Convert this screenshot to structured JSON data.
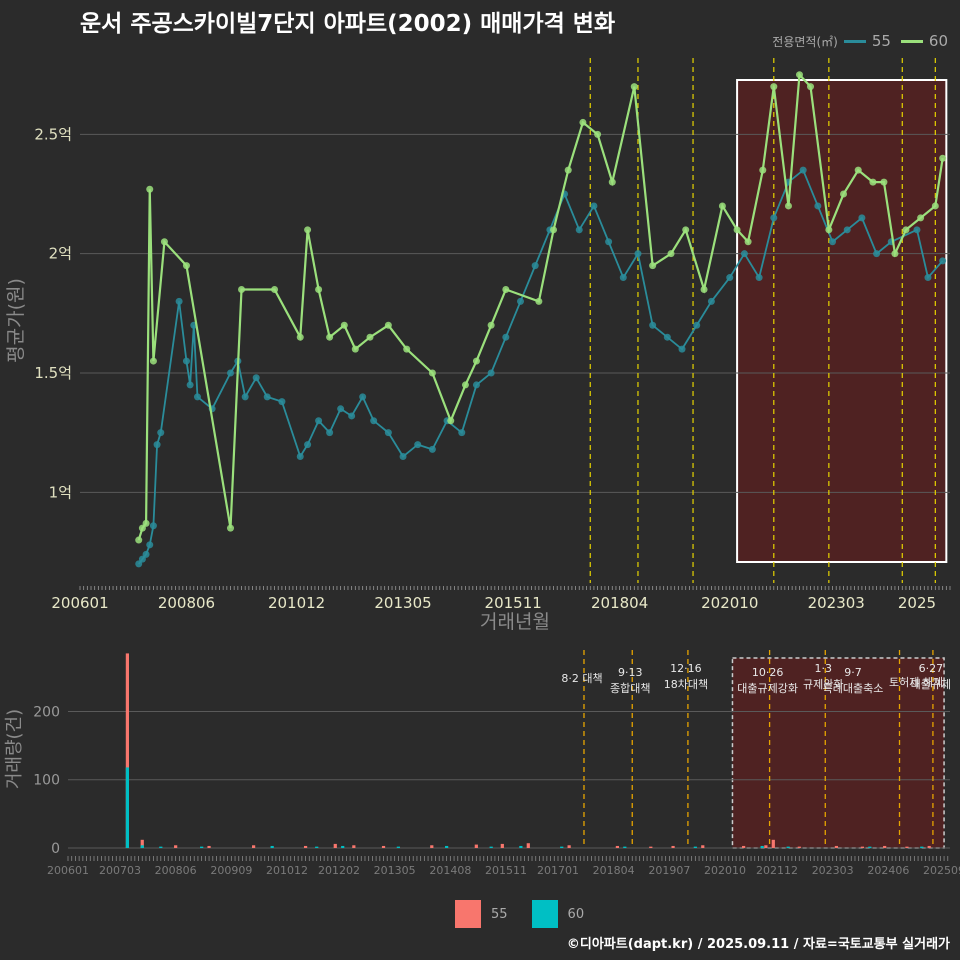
{
  "title": "운서 주공스카이빌7단지 아파트(2002) 매매가격 변화",
  "legend": {
    "title": "전용면적(㎡)",
    "items": [
      "55",
      "60"
    ]
  },
  "footer": "©디아파트(dapt.kr) / 2025.09.11 / 자료=국토교통부 실거래가",
  "colors": {
    "s55_line": "#2a8c9a",
    "s60_line": "#9be07c",
    "bar55": "#f8766d",
    "bar60": "#00bfc4",
    "policy": "#e6d400",
    "highlight": "#5c2020"
  },
  "chart_data": [
    {
      "type": "line",
      "xlabel": "거래년월",
      "ylabel": "평균가(원)",
      "x_ticks": [
        "200601",
        "200806",
        "201012",
        "201305",
        "201511",
        "201804",
        "202010",
        "202303",
        "2025"
      ],
      "y_ticks": [
        "1억",
        "1.5억",
        "2억",
        "2.5억"
      ],
      "ylim": [
        0.62,
        2.82
      ],
      "y_unit": "억",
      "highlight_range": [
        "2020-12",
        "2025-09"
      ],
      "policy_dates": [
        "2017-08",
        "2018-09",
        "2019-12",
        "2021-10",
        "2023-01",
        "2024-09",
        "2025-06"
      ],
      "series": [
        {
          "name": "55",
          "points": [
            [
              "2007-05",
              0.7
            ],
            [
              "2007-06",
              0.72
            ],
            [
              "2007-07",
              0.74
            ],
            [
              "2007-08",
              0.78
            ],
            [
              "2007-09",
              0.86
            ],
            [
              "2007-10",
              1.2
            ],
            [
              "2007-11",
              1.25
            ],
            [
              "2008-04",
              1.8
            ],
            [
              "2008-06",
              1.55
            ],
            [
              "2008-07",
              1.45
            ],
            [
              "2008-08",
              1.7
            ],
            [
              "2008-09",
              1.4
            ],
            [
              "2009-01",
              1.35
            ],
            [
              "2009-06",
              1.5
            ],
            [
              "2009-08",
              1.55
            ],
            [
              "2009-10",
              1.4
            ],
            [
              "2010-01",
              1.48
            ],
            [
              "2010-04",
              1.4
            ],
            [
              "2010-08",
              1.38
            ],
            [
              "2011-01",
              1.15
            ],
            [
              "2011-03",
              1.2
            ],
            [
              "2011-06",
              1.3
            ],
            [
              "2011-09",
              1.25
            ],
            [
              "2011-12",
              1.35
            ],
            [
              "2012-03",
              1.32
            ],
            [
              "2012-06",
              1.4
            ],
            [
              "2012-09",
              1.3
            ],
            [
              "2013-01",
              1.25
            ],
            [
              "2013-05",
              1.15
            ],
            [
              "2013-09",
              1.2
            ],
            [
              "2014-01",
              1.18
            ],
            [
              "2014-05",
              1.3
            ],
            [
              "2014-09",
              1.25
            ],
            [
              "2015-01",
              1.45
            ],
            [
              "2015-05",
              1.5
            ],
            [
              "2015-09",
              1.65
            ],
            [
              "2016-01",
              1.8
            ],
            [
              "2016-05",
              1.95
            ],
            [
              "2016-09",
              2.1
            ],
            [
              "2017-01",
              2.25
            ],
            [
              "2017-05",
              2.1
            ],
            [
              "2017-09",
              2.2
            ],
            [
              "2018-01",
              2.05
            ],
            [
              "2018-05",
              1.9
            ],
            [
              "2018-09",
              2.0
            ],
            [
              "2019-01",
              1.7
            ],
            [
              "2019-05",
              1.65
            ],
            [
              "2019-09",
              1.6
            ],
            [
              "2020-01",
              1.7
            ],
            [
              "2020-05",
              1.8
            ],
            [
              "2020-10",
              1.9
            ],
            [
              "2021-02",
              2.0
            ],
            [
              "2021-06",
              1.9
            ],
            [
              "2021-10",
              2.15
            ],
            [
              "2022-02",
              2.3
            ],
            [
              "2022-06",
              2.35
            ],
            [
              "2022-10",
              2.2
            ],
            [
              "2023-02",
              2.05
            ],
            [
              "2023-06",
              2.1
            ],
            [
              "2023-10",
              2.15
            ],
            [
              "2024-02",
              2.0
            ],
            [
              "2024-06",
              2.05
            ],
            [
              "2025-01",
              2.1
            ],
            [
              "2025-04",
              1.9
            ],
            [
              "2025-08",
              1.97
            ]
          ]
        },
        {
          "name": "60",
          "points": [
            [
              "2007-05",
              0.8
            ],
            [
              "2007-06",
              0.85
            ],
            [
              "2007-07",
              0.87
            ],
            [
              "2007-08",
              2.27
            ],
            [
              "2007-09",
              1.55
            ],
            [
              "2007-12",
              2.05
            ],
            [
              "2008-06",
              1.95
            ],
            [
              "2009-06",
              0.85
            ],
            [
              "2009-09",
              1.85
            ],
            [
              "2010-06",
              1.85
            ],
            [
              "2011-01",
              1.65
            ],
            [
              "2011-03",
              2.1
            ],
            [
              "2011-06",
              1.85
            ],
            [
              "2011-09",
              1.65
            ],
            [
              "2012-01",
              1.7
            ],
            [
              "2012-04",
              1.6
            ],
            [
              "2012-08",
              1.65
            ],
            [
              "2013-01",
              1.7
            ],
            [
              "2013-06",
              1.6
            ],
            [
              "2014-01",
              1.5
            ],
            [
              "2014-06",
              1.3
            ],
            [
              "2014-10",
              1.45
            ],
            [
              "2015-01",
              1.55
            ],
            [
              "2015-05",
              1.7
            ],
            [
              "2015-09",
              1.85
            ],
            [
              "2016-06",
              1.8
            ],
            [
              "2016-10",
              2.1
            ],
            [
              "2017-02",
              2.35
            ],
            [
              "2017-06",
              2.55
            ],
            [
              "2017-10",
              2.5
            ],
            [
              "2018-02",
              2.3
            ],
            [
              "2018-08",
              2.7
            ],
            [
              "2019-01",
              1.95
            ],
            [
              "2019-06",
              2.0
            ],
            [
              "2019-10",
              2.1
            ],
            [
              "2020-03",
              1.85
            ],
            [
              "2020-08",
              2.2
            ],
            [
              "2020-12",
              2.1
            ],
            [
              "2021-03",
              2.05
            ],
            [
              "2021-07",
              2.35
            ],
            [
              "2021-10",
              2.7
            ],
            [
              "2022-02",
              2.2
            ],
            [
              "2022-05",
              2.75
            ],
            [
              "2022-08",
              2.7
            ],
            [
              "2023-01",
              2.1
            ],
            [
              "2023-05",
              2.25
            ],
            [
              "2023-09",
              2.35
            ],
            [
              "2024-01",
              2.3
            ],
            [
              "2024-04",
              2.3
            ],
            [
              "2024-07",
              2.0
            ],
            [
              "2024-10",
              2.1
            ],
            [
              "2025-02",
              2.15
            ],
            [
              "2025-06",
              2.2
            ],
            [
              "2025-08",
              2.4
            ]
          ]
        }
      ]
    },
    {
      "type": "bar",
      "xlabel": "",
      "ylabel": "거래량(건)",
      "x_ticks": [
        "200601",
        "200703",
        "200806",
        "200909",
        "201012",
        "201202",
        "201305",
        "201408",
        "201511",
        "201701",
        "201804",
        "201907",
        "202010",
        "202112",
        "202303",
        "202406",
        "202509"
      ],
      "y_ticks": [
        "0",
        "100",
        "200"
      ],
      "ylim": [
        0,
        290
      ],
      "policy_labels": [
        {
          "date": "2017-08",
          "lines": [
            "8·2 대책"
          ]
        },
        {
          "date": "2018-09",
          "lines": [
            "9·13",
            "종합대책"
          ]
        },
        {
          "date": "2019-12",
          "lines": [
            "12·16",
            "18차대책"
          ]
        },
        {
          "date": "2021-10",
          "lines": [
            "10·26",
            "대출규제강화"
          ]
        },
        {
          "date": "2023-01",
          "lines": [
            "1·3",
            "규제완화"
          ]
        },
        {
          "date": "2023-09",
          "lines": [
            "9·7",
            "특례대출축소"
          ]
        },
        {
          "date": "2025-06",
          "lines": [
            "6·27",
            "대출규제"
          ]
        },
        {
          "date": "2025-02",
          "lines": [
            "토허제 해제"
          ]
        }
      ],
      "series": [
        {
          "name": "55",
          "values": [
            [
              "2007-05",
              285
            ],
            [
              "2007-09",
              12
            ],
            [
              "2008-06",
              4
            ],
            [
              "2009-03",
              3
            ],
            [
              "2010-03",
              4
            ],
            [
              "2011-05",
              3
            ],
            [
              "2012-01",
              6
            ],
            [
              "2012-06",
              4
            ],
            [
              "2013-02",
              3
            ],
            [
              "2014-03",
              4
            ],
            [
              "2015-03",
              5
            ],
            [
              "2015-10",
              6
            ],
            [
              "2016-05",
              7
            ],
            [
              "2017-04",
              4
            ],
            [
              "2018-05",
              3
            ],
            [
              "2019-02",
              2
            ],
            [
              "2019-08",
              3
            ],
            [
              "2020-04",
              4
            ],
            [
              "2021-03",
              3
            ],
            [
              "2021-09",
              4
            ],
            [
              "2021-11",
              12
            ],
            [
              "2022-06",
              2
            ],
            [
              "2023-04",
              3
            ],
            [
              "2023-11",
              2
            ],
            [
              "2024-05",
              3
            ],
            [
              "2024-11",
              2
            ],
            [
              "2025-05",
              3
            ]
          ]
        },
        {
          "name": "60",
          "values": [
            [
              "2007-05",
              118
            ],
            [
              "2007-09",
              4
            ],
            [
              "2008-02",
              2
            ],
            [
              "2009-01",
              2
            ],
            [
              "2010-08",
              3
            ],
            [
              "2011-08",
              2
            ],
            [
              "2012-03",
              3
            ],
            [
              "2013-06",
              2
            ],
            [
              "2014-07",
              3
            ],
            [
              "2015-07",
              2
            ],
            [
              "2016-03",
              3
            ],
            [
              "2017-02",
              2
            ],
            [
              "2018-07",
              2
            ],
            [
              "2020-02",
              2
            ],
            [
              "2021-08",
              3
            ],
            [
              "2022-03",
              2
            ],
            [
              "2024-01",
              2
            ],
            [
              "2025-03",
              2
            ]
          ]
        }
      ]
    }
  ]
}
